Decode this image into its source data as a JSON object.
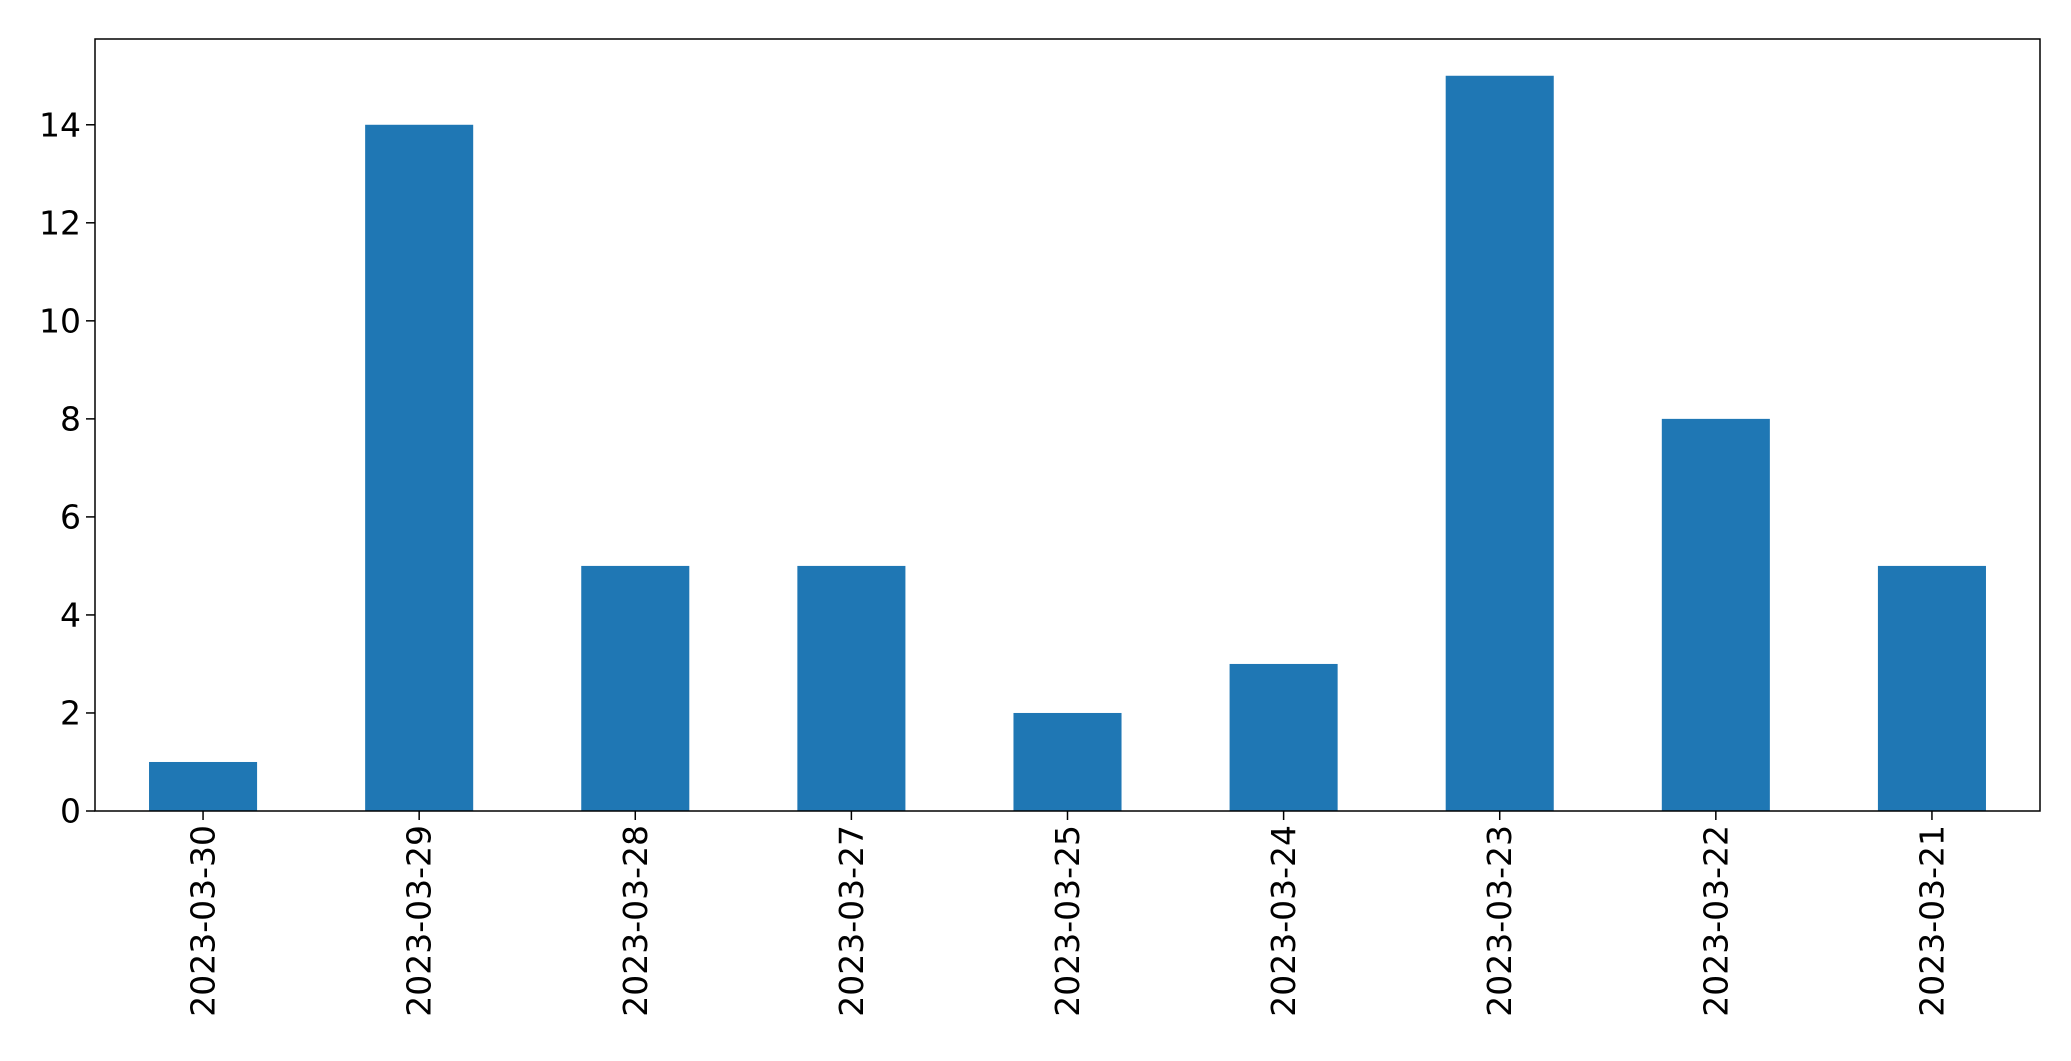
{
  "chart_data": {
    "type": "bar",
    "title": "",
    "xlabel": "",
    "ylabel": "",
    "categories": [
      "2023-03-30",
      "2023-03-29",
      "2023-03-28",
      "2023-03-27",
      "2023-03-25",
      "2023-03-24",
      "2023-03-23",
      "2023-03-22",
      "2023-03-21"
    ],
    "values": [
      1,
      14,
      5,
      5,
      2,
      3,
      15,
      8,
      5
    ],
    "ylim": [
      0,
      15.75
    ],
    "yticks": [
      0,
      2,
      4,
      6,
      8,
      10,
      12,
      14
    ],
    "ytick_labels": [
      "0",
      "2",
      "4",
      "6",
      "8",
      "10",
      "12",
      "14"
    ],
    "bar_color": "#1f77b4",
    "grid": false,
    "legend": false
  }
}
